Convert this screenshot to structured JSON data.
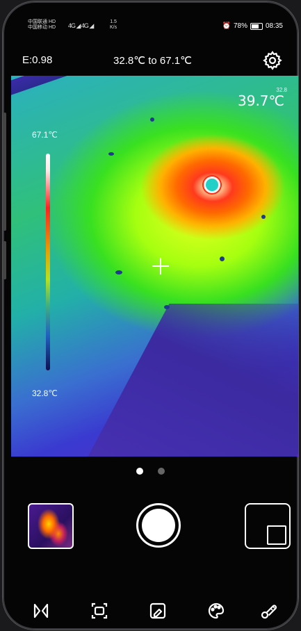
{
  "status_bar": {
    "carrier_1": "中国联通 HD",
    "carrier_2": "中国移动 HD",
    "signal": "4G ◢ 4G ◢",
    "net_speed_value": "1.5",
    "net_speed_unit": "K/s",
    "battery": "78%",
    "time": "08:35"
  },
  "header": {
    "emissivity": "E:0.98",
    "temp_range": "32.8℃ to 67.1℃"
  },
  "thermal": {
    "spot_temp": "39.7℃",
    "spot_small": "32.8",
    "scale_max": "67.1℃",
    "scale_min": "32.8℃"
  },
  "pager": {
    "active_index": 0,
    "count": 2
  },
  "toolbar": {
    "icons": [
      "mirror-icon",
      "screen-capture-icon",
      "image-edit-icon",
      "palette-icon",
      "thermometer-icon"
    ]
  }
}
